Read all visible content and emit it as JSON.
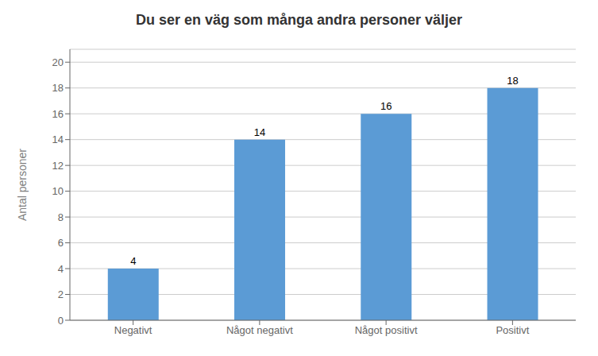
{
  "chart_data": {
    "type": "bar",
    "title": "Du ser en väg som många andra personer väljer",
    "categories": [
      "Negativt",
      "Något negativt",
      "Något positivt",
      "Positivt"
    ],
    "values": [
      4,
      14,
      16,
      18
    ],
    "color": "#5B9BD5",
    "ylabel": "Antal personer",
    "ylim": [
      0,
      21
    ],
    "yticks": [
      0,
      2,
      4,
      6,
      8,
      10,
      12,
      14,
      16,
      18,
      20
    ],
    "grid": true,
    "data_labels": true
  }
}
